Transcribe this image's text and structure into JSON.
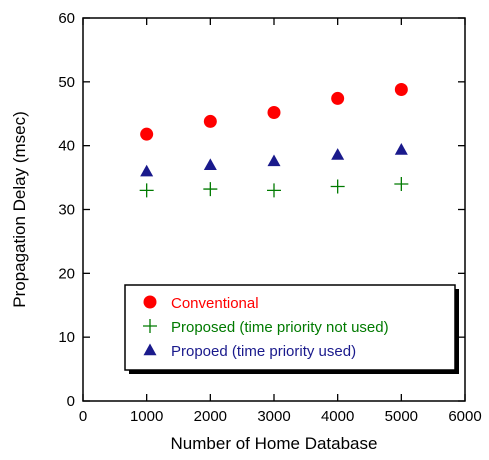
{
  "chart_data": {
    "type": "scatter",
    "xlabel": "Number of Home Database",
    "ylabel": "Propagation Delay (msec)",
    "xlim": [
      0,
      6000
    ],
    "ylim": [
      0,
      60
    ],
    "xticks": [
      0,
      1000,
      2000,
      3000,
      4000,
      5000,
      6000
    ],
    "yticks": [
      0,
      10,
      20,
      30,
      40,
      50,
      60
    ],
    "grid": false,
    "legend_position": "bottom-right",
    "series": [
      {
        "name": "Conventional",
        "marker": "circle",
        "color": "#ff0000",
        "text_color": "#ff0000",
        "x": [
          1000,
          2000,
          3000,
          4000,
          5000
        ],
        "y": [
          41.8,
          43.8,
          45.2,
          47.4,
          48.8
        ]
      },
      {
        "name": "Proposed (time priority not used)",
        "marker": "plus",
        "color": "#007a00",
        "text_color": "#007a00",
        "x": [
          1000,
          2000,
          3000,
          4000,
          5000
        ],
        "y": [
          33.0,
          33.2,
          33.0,
          33.6,
          34.0
        ]
      },
      {
        "name": "Propoed (time priority used)",
        "marker": "triangle",
        "color": "#1a1a8c",
        "text_color": "#1a1a8c",
        "x": [
          1000,
          2000,
          3000,
          4000,
          5000
        ],
        "y": [
          36.0,
          37.0,
          37.6,
          38.6,
          39.4
        ]
      }
    ]
  }
}
